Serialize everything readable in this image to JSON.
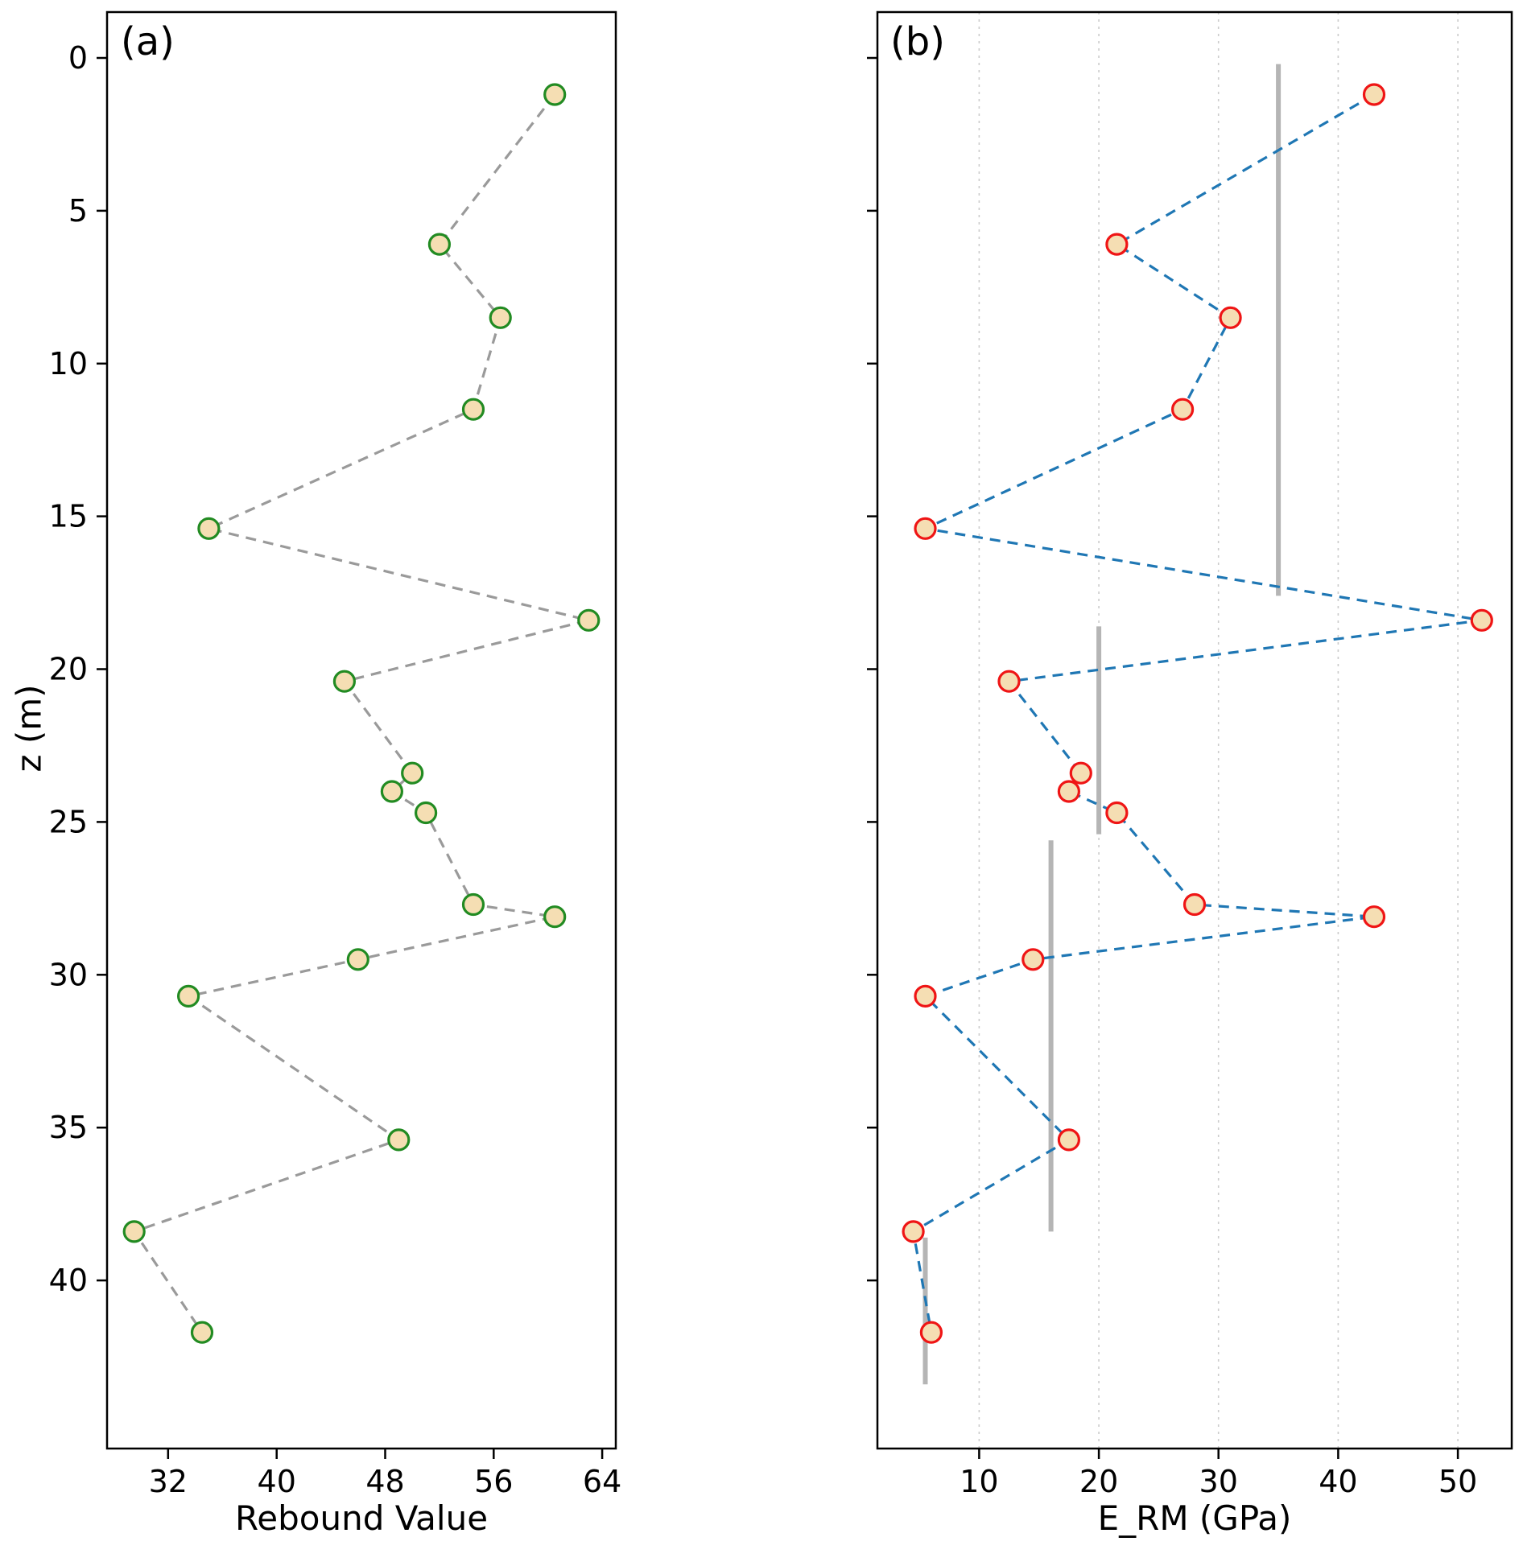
{
  "chart_data": [
    {
      "type": "scatter",
      "title": "(a)",
      "xlabel": "Rebound Value",
      "ylabel": "z (m)",
      "orientation": "depth-profile",
      "xlim": [
        27.5,
        65
      ],
      "zlim": [
        -1.5,
        45.5
      ],
      "xticks": [
        32,
        40,
        48,
        56,
        64
      ],
      "zticks": [
        0,
        5,
        10,
        15,
        20,
        25,
        30,
        35,
        40
      ],
      "show_z_labels": true,
      "grid": false,
      "line_style": "dashed",
      "line_color": "#9a9a9a",
      "marker_fill": "#f5deb3",
      "marker_edge": "#228b22",
      "value_key": "rebound",
      "points": [
        {
          "z": 1.2,
          "rebound": 60.5
        },
        {
          "z": 6.1,
          "rebound": 52
        },
        {
          "z": 8.5,
          "rebound": 56.5
        },
        {
          "z": 11.5,
          "rebound": 54.5
        },
        {
          "z": 15.4,
          "rebound": 35
        },
        {
          "z": 18.4,
          "rebound": 63
        },
        {
          "z": 20.4,
          "rebound": 45
        },
        {
          "z": 23.4,
          "rebound": 50
        },
        {
          "z": 24.0,
          "rebound": 48.5
        },
        {
          "z": 24.7,
          "rebound": 51
        },
        {
          "z": 27.7,
          "rebound": 54.5
        },
        {
          "z": 28.1,
          "rebound": 60.5
        },
        {
          "z": 29.5,
          "rebound": 46
        },
        {
          "z": 30.7,
          "rebound": 33.5
        },
        {
          "z": 35.4,
          "rebound": 49
        },
        {
          "z": 38.4,
          "rebound": 29.5
        },
        {
          "z": 41.7,
          "rebound": 34.5
        }
      ],
      "segments": []
    },
    {
      "type": "scatter",
      "title": "(b)",
      "xlabel": "E_RM (GPa)",
      "ylabel": "",
      "orientation": "depth-profile",
      "xlim": [
        1.5,
        54.5
      ],
      "zlim": [
        -1.5,
        45.5
      ],
      "xticks": [
        10,
        20,
        30,
        40,
        50
      ],
      "zticks": [
        0,
        5,
        10,
        15,
        20,
        25,
        30,
        35,
        40
      ],
      "show_z_labels": false,
      "grid": true,
      "grid_color": "#cccccc",
      "line_style": "dashed",
      "line_color": "#1f77b4",
      "marker_fill": "#f5deb3",
      "marker_edge": "#ef1515",
      "segment_color": "#b5b5b5",
      "value_key": "e_rm",
      "points": [
        {
          "z": 1.2,
          "e_rm": 43
        },
        {
          "z": 6.1,
          "e_rm": 21.5
        },
        {
          "z": 8.5,
          "e_rm": 31
        },
        {
          "z": 11.5,
          "e_rm": 27
        },
        {
          "z": 15.4,
          "e_rm": 5.5
        },
        {
          "z": 18.4,
          "e_rm": 52
        },
        {
          "z": 20.4,
          "e_rm": 12.5
        },
        {
          "z": 23.4,
          "e_rm": 18.5
        },
        {
          "z": 24.0,
          "e_rm": 17.5
        },
        {
          "z": 24.7,
          "e_rm": 21.5
        },
        {
          "z": 27.7,
          "e_rm": 28
        },
        {
          "z": 28.1,
          "e_rm": 43
        },
        {
          "z": 29.5,
          "e_rm": 14.5
        },
        {
          "z": 30.7,
          "e_rm": 5.5
        },
        {
          "z": 35.4,
          "e_rm": 17.5
        },
        {
          "z": 38.4,
          "e_rm": 4.5
        },
        {
          "z": 41.7,
          "e_rm": 6
        }
      ],
      "segments": [
        {
          "value": 35,
          "z_from": 0.2,
          "z_to": 17.6
        },
        {
          "value": 20,
          "z_from": 18.6,
          "z_to": 25.4
        },
        {
          "value": 16,
          "z_from": 25.6,
          "z_to": 38.4
        },
        {
          "value": 5.5,
          "z_from": 38.6,
          "z_to": 43.4
        }
      ]
    }
  ]
}
